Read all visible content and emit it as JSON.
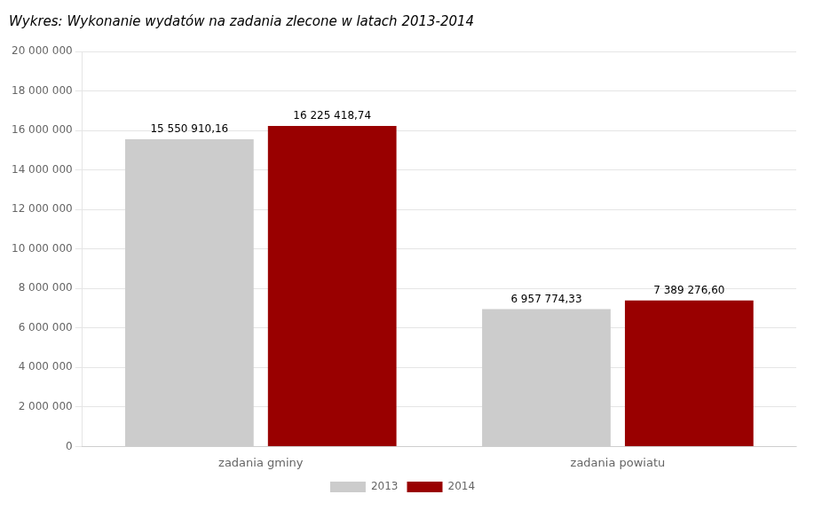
{
  "chart_data": {
    "type": "bar",
    "title": "Wykres: Wykonanie wydatów na zadania zlecone w latach 2013-2014",
    "categories": [
      "zadania gminy",
      "zadania powiatu"
    ],
    "series": [
      {
        "name": "2013",
        "color": "#cccccc",
        "values": [
          15550910.16,
          6957774.33
        ],
        "value_labels": [
          "15 550 910,16",
          "6 957 774,33"
        ]
      },
      {
        "name": "2014",
        "color": "#990000",
        "values": [
          16225418.74,
          7389276.6
        ],
        "value_labels": [
          "16 225 418,74",
          "7 389 276,60"
        ]
      }
    ],
    "ylim": [
      0,
      20000000
    ],
    "yticks": [
      0,
      {
        "value": 2000000,
        "label": "2 000 000"
      },
      {
        "value": 4000000,
        "label": "4 000 000"
      },
      {
        "value": 6000000,
        "label": "6 000 000"
      },
      {
        "value": 8000000,
        "label": "8 000 000"
      },
      {
        "value": 10000000,
        "label": "10 000 000"
      },
      {
        "value": 12000000,
        "label": "12 000 000"
      },
      {
        "value": 14000000,
        "label": "14 000 000"
      },
      {
        "value": 16000000,
        "label": "16 000 000"
      },
      {
        "value": 18000000,
        "label": "18 000 000"
      },
      {
        "value": 20000000,
        "label": "20 000 000"
      }
    ],
    "grid": true,
    "legend": "bottom",
    "data_labels": true
  }
}
